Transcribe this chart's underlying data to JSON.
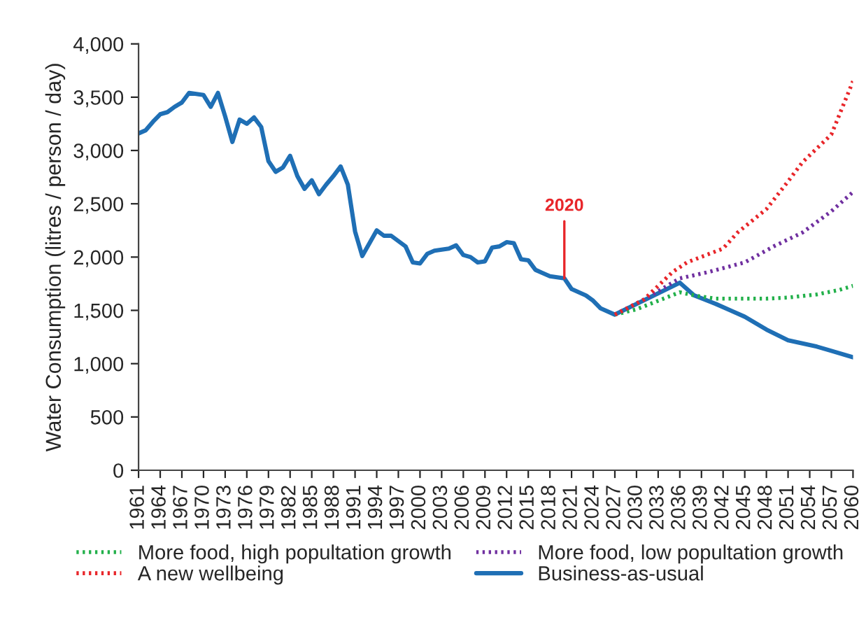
{
  "chart_data": {
    "type": "line",
    "ylabel": "Water Consumption (litres / person / day)",
    "xlim": [
      1961,
      2060
    ],
    "xticks": [
      1961,
      1964,
      1967,
      1970,
      1973,
      1976,
      1979,
      1982,
      1985,
      1988,
      1991,
      1994,
      1997,
      2000,
      2003,
      2006,
      2009,
      2012,
      2015,
      2018,
      2021,
      2024,
      2027,
      2030,
      2033,
      2036,
      2039,
      2042,
      2045,
      2048,
      2051,
      2054,
      2057,
      2060
    ],
    "ylim": [
      0,
      4000
    ],
    "yticks": [
      0,
      500,
      {
        "value": 1000,
        "label": "1,000"
      },
      {
        "value": 1500,
        "label": "1,500"
      },
      {
        "value": 2000,
        "label": "2,000"
      },
      {
        "value": 2500,
        "label": "2,500"
      },
      {
        "value": 3000,
        "label": "3,000"
      },
      {
        "value": 3500,
        "label": "3,500"
      },
      {
        "value": 4000,
        "label": "4,000"
      }
    ],
    "grid": false,
    "legend": "bottom",
    "marker": "none",
    "annotations": [
      {
        "text": "2020",
        "x": 2020,
        "y": 1800
      }
    ],
    "series": [
      {
        "name": "More food, high popultation growth",
        "color": "#22b04a",
        "line_style": "dotted",
        "x": [
          2027,
          2030,
          2036,
          2038,
          2041,
          2048,
          2051,
          2055,
          2058,
          2060
        ],
        "values": [
          1460,
          1510,
          1670,
          1640,
          1610,
          1610,
          1620,
          1650,
          1690,
          1730
        ]
      },
      {
        "name": "A new wellbeing",
        "color": "#e8262a",
        "line_style": "dotted",
        "x": [
          2027,
          2031,
          2035,
          2037,
          2042,
          2044,
          2048,
          2051,
          2053,
          2057,
          2060
        ],
        "values": [
          1460,
          1600,
          1860,
          1950,
          2080,
          2230,
          2450,
          2710,
          2890,
          3150,
          3650
        ]
      },
      {
        "name": "More food, low popultation growth",
        "color": "#7030a0",
        "line_style": "dotted",
        "x": [
          2027,
          2031,
          2036,
          2040,
          2045,
          2049,
          2053,
          2057,
          2060
        ],
        "values": [
          1460,
          1600,
          1800,
          1860,
          1950,
          2100,
          2230,
          2430,
          2610
        ]
      },
      {
        "name": "Business-as-usual",
        "color": "#1f6fb5",
        "line_style": "solid",
        "x": [
          1961,
          1962,
          1963,
          1964,
          1965,
          1966,
          1967,
          1968,
          1969,
          1970,
          1971,
          1972,
          1973,
          1974,
          1975,
          1976,
          1977,
          1978,
          1979,
          1980,
          1981,
          1982,
          1983,
          1984,
          1985,
          1986,
          1987,
          1988,
          1989,
          1990,
          1991,
          1992,
          1993,
          1994,
          1995,
          1996,
          1998,
          1999,
          2000,
          2001,
          2002,
          2004,
          2005,
          2006,
          2007,
          2008,
          2009,
          2010,
          2011,
          2012,
          2013,
          2014,
          2015,
          2016,
          2017,
          2018,
          2020,
          2021,
          2023,
          2024,
          2025,
          2027,
          2036,
          2038,
          2041,
          2043,
          2045,
          2048,
          2051,
          2055,
          2057,
          2060
        ],
        "values": [
          3160,
          3190,
          3270,
          3340,
          3360,
          3410,
          3450,
          3540,
          3530,
          3520,
          3410,
          3540,
          3320,
          3080,
          3290,
          3250,
          3310,
          3220,
          2900,
          2800,
          2840,
          2950,
          2760,
          2640,
          2720,
          2590,
          2680,
          2760,
          2850,
          2680,
          2240,
          2010,
          2130,
          2250,
          2200,
          2200,
          2100,
          1950,
          1940,
          2030,
          2060,
          2080,
          2110,
          2020,
          2000,
          1950,
          1960,
          2090,
          2100,
          2140,
          2130,
          1980,
          1970,
          1880,
          1850,
          1820,
          1800,
          1700,
          1640,
          1590,
          1520,
          1460,
          1760,
          1640,
          1560,
          1500,
          1440,
          1320,
          1220,
          1160,
          1120,
          1060
        ]
      }
    ]
  }
}
